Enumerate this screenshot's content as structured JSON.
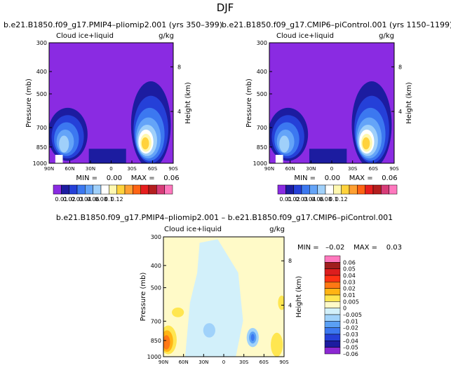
{
  "title": "DJF",
  "colors": {
    "cb1": [
      "#8a2be2",
      "#1c1ca0",
      "#2540d8",
      "#3c78f0",
      "#64a4f8",
      "#a0d0fa",
      "#ffffff",
      "#fff8b0",
      "#ffd23c",
      "#ffa032",
      "#ff6414",
      "#e61e1e",
      "#b41e1e",
      "#d73c78",
      "#ff78be"
    ],
    "cb2": [
      "#8c28d2",
      "#1c1ca0",
      "#2540d8",
      "#3c78f0",
      "#5aa0f5",
      "#a0d2fa",
      "#d2f0fa",
      "#fffac8",
      "#ffe650",
      "#ffb414",
      "#ff7814",
      "#ff3214",
      "#dc1e1e",
      "#a01e1e",
      "#ff78be"
    ]
  },
  "panels": {
    "left": {
      "header": "b.e21.B1850.f09_g17.PMIP4–pliomip2.001  (yrs  350–399)",
      "var_label": "Cloud ice+liquid",
      "units": "g/kg",
      "stats": "MIN =    0.00    MAX =    0.06"
    },
    "right": {
      "header": "b.e21.B1850.f09_g17.CMIP6–piControl.001  (yrs  1150–1199)",
      "var_label": "Cloud ice+liquid",
      "units": "g/kg",
      "stats": "MIN =    0.00    MAX =    0.06"
    },
    "diff": {
      "header": "b.e21.B1850.f09_g17.PMIP4–pliomip2.001  –  b.e21.B1850.f09_g17.CMIP6–piControl.001",
      "var_label": "Cloud ice+liquid",
      "units": "g/kg",
      "stats": "MIN =   –0.02    MAX =    0.03"
    }
  },
  "chart_data": [
    {
      "type": "contour",
      "id": "pliomip2",
      "title": "b.e21.B1850.f09_g17.PMIP4–pliomip2.001  (yrs  350–399)",
      "subtitle": "Cloud ice+liquid",
      "units": "g/kg",
      "xlabel": "",
      "ylabel": "Pressure (mb)",
      "y2label": "Height (km)",
      "x_ticks": [
        "90N",
        "60N",
        "30N",
        "0",
        "30S",
        "60S",
        "90S"
      ],
      "y_ticks": [
        "300",
        "400",
        "500",
        "700",
        "850",
        "1000"
      ],
      "y2_ticks": [
        "8",
        "4"
      ],
      "ylim": [
        1000,
        300
      ],
      "min": 0.0,
      "max": 0.06,
      "colorbar_labels": [
        "0.01",
        "0.02",
        "0.03",
        "0.04",
        "0.06",
        "0.08",
        "0.1",
        "0.12"
      ]
    },
    {
      "type": "contour",
      "id": "picontrol",
      "title": "b.e21.B1850.f09_g17.CMIP6–piControl.001  (yrs  1150–1199)",
      "subtitle": "Cloud ice+liquid",
      "units": "g/kg",
      "xlabel": "",
      "ylabel": "Pressure (mb)",
      "y2label": "Height (km)",
      "x_ticks": [
        "90N",
        "60N",
        "30N",
        "0",
        "30S",
        "60S",
        "90S"
      ],
      "y_ticks": [
        "300",
        "400",
        "500",
        "700",
        "850",
        "1000"
      ],
      "y2_ticks": [
        "8",
        "4"
      ],
      "ylim": [
        1000,
        300
      ],
      "min": 0.0,
      "max": 0.06,
      "colorbar_labels": [
        "0.01",
        "0.02",
        "0.03",
        "0.04",
        "0.06",
        "0.08",
        "0.1",
        "0.12"
      ]
    },
    {
      "type": "contour",
      "id": "difference",
      "title": "b.e21.B1850.f09_g17.PMIP4–pliomip2.001  –  b.e21.B1850.f09_g17.CMIP6–piControl.001",
      "subtitle": "Cloud ice+liquid",
      "units": "g/kg",
      "xlabel": "",
      "ylabel": "Pressure (mb)",
      "y2label": "Height (km)",
      "x_ticks": [
        "90N",
        "60N",
        "30N",
        "0",
        "30S",
        "60S",
        "90S"
      ],
      "y_ticks": [
        "300",
        "400",
        "500",
        "700",
        "850",
        "1000"
      ],
      "y2_ticks": [
        "8",
        "4"
      ],
      "ylim": [
        1000,
        300
      ],
      "min": -0.02,
      "max": 0.03,
      "colorbar_labels": [
        "0.06",
        "0.05",
        "0.04",
        "0.03",
        "0.02",
        "0.01",
        "0.005",
        "0",
        "–0.005",
        "–0.01",
        "–0.02",
        "–0.03",
        "–0.04",
        "–0.05",
        "–0.06"
      ]
    }
  ]
}
